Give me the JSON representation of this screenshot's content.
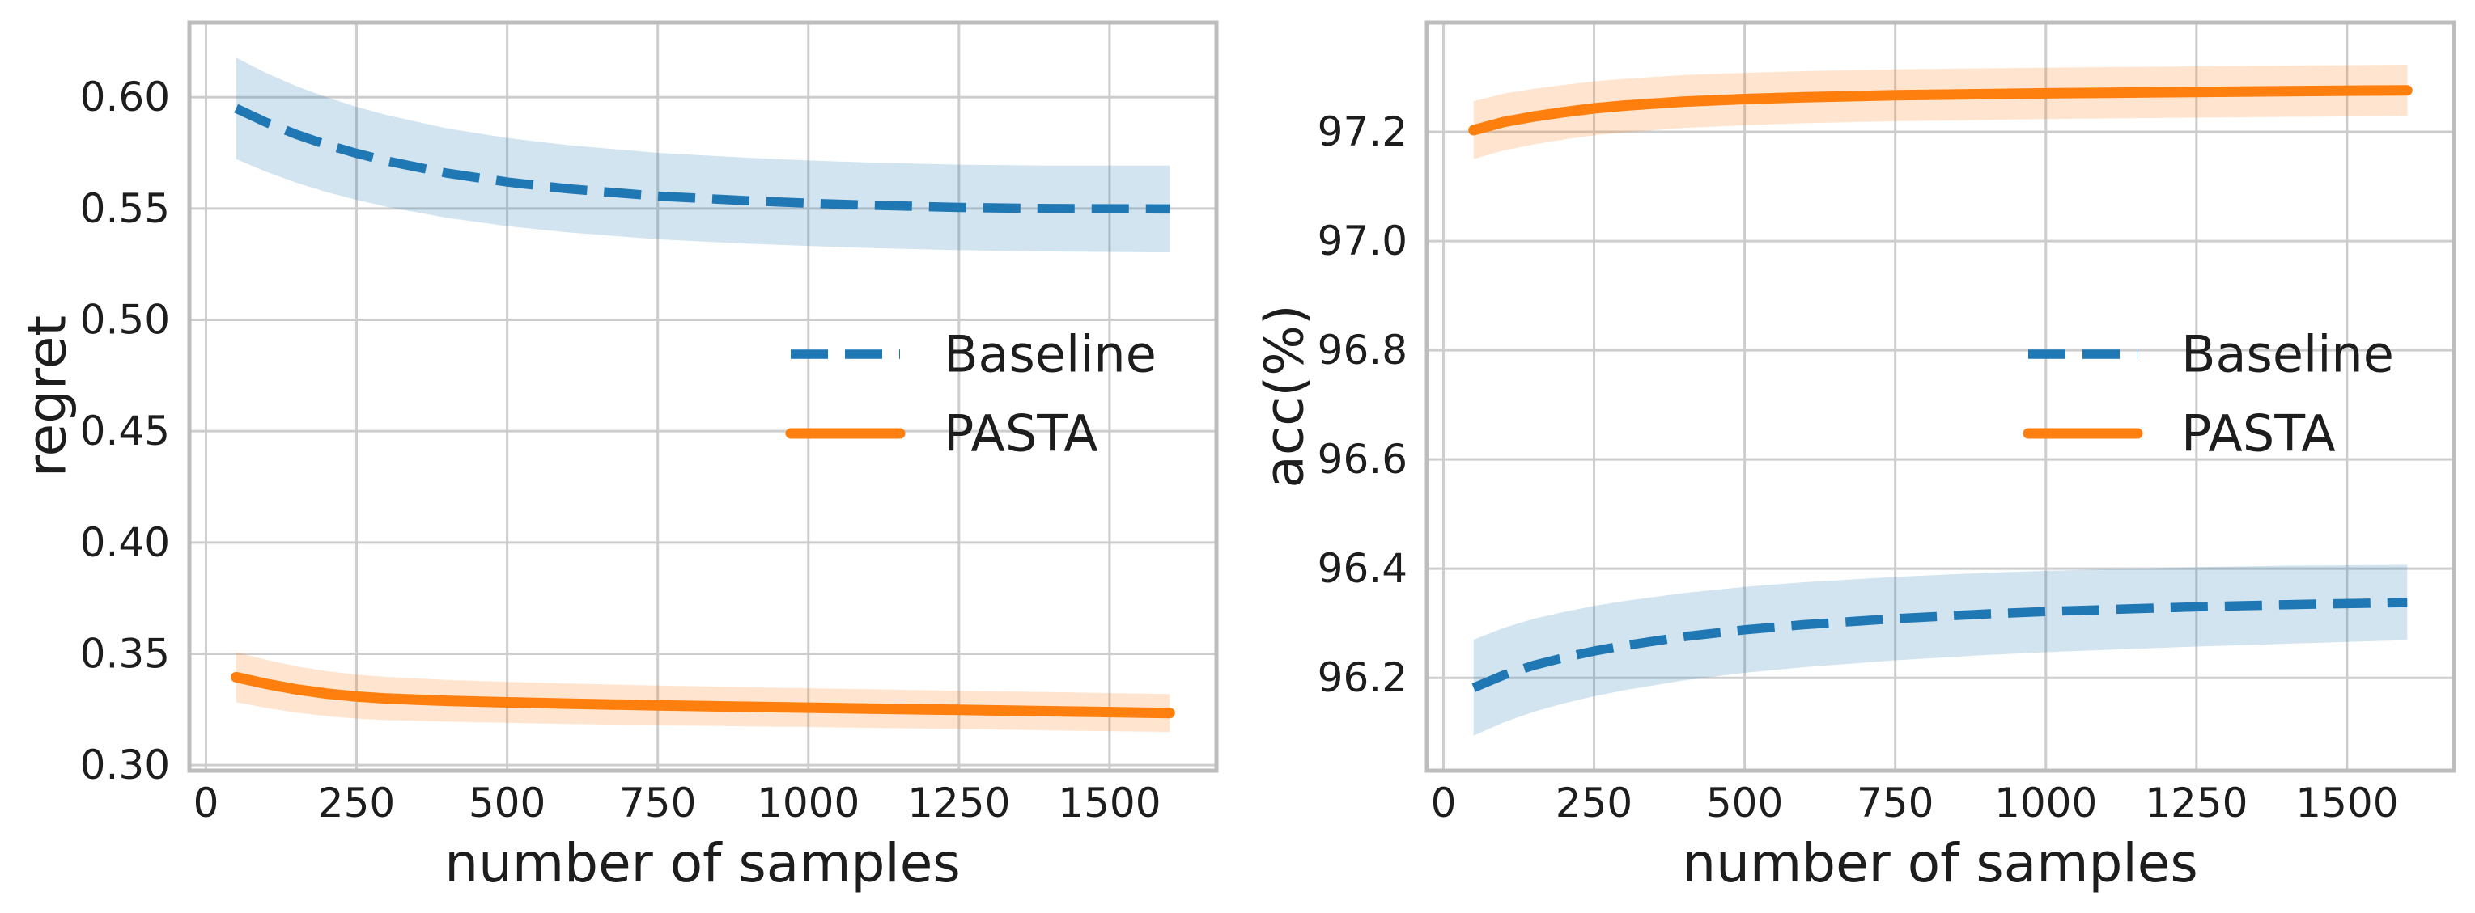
{
  "page": {
    "background": "#ffffff"
  },
  "colors": {
    "baseline": "#1f77b4",
    "pasta": "#ff7f0e",
    "grid": "#cdcdcd",
    "spine": "#bdbdbd",
    "text": "#1d1d1d"
  },
  "legend": {
    "baseline_label": "Baseline",
    "pasta_label": "PASTA"
  },
  "chart_data": [
    {
      "type": "line",
      "title": "",
      "xlabel": "number of samples",
      "ylabel": "regret",
      "xlim": [
        -27.5,
        1677.5
      ],
      "ylim": [
        0.2975,
        0.6335
      ],
      "grid": true,
      "legend_position": "center right, no frame",
      "x_ticks": [
        0,
        250,
        500,
        750,
        1000,
        1250,
        1500
      ],
      "x_tick_labels": [
        "0",
        "250",
        "500",
        "750",
        "1000",
        "1250",
        "1500"
      ],
      "y_ticks": [
        0.3,
        0.35,
        0.4,
        0.45,
        0.5,
        0.55,
        0.6
      ],
      "y_tick_labels": [
        "0.30",
        "0.35",
        "0.40",
        "0.45",
        "0.50",
        "0.55",
        "0.60"
      ],
      "series": [
        {
          "name": "Baseline",
          "style": "dashed",
          "color_key": "baseline",
          "x": [
            50,
            100,
            150,
            200,
            250,
            300,
            400,
            500,
            600,
            750,
            900,
            1000,
            1100,
            1250,
            1400,
            1600
          ],
          "y": [
            0.595,
            0.5887,
            0.5833,
            0.5787,
            0.5748,
            0.5714,
            0.5659,
            0.5619,
            0.5589,
            0.5556,
            0.5535,
            0.5524,
            0.5515,
            0.5505,
            0.55,
            0.5498
          ],
          "band": [
            0.0228,
            0.0222,
            0.0217,
            0.0213,
            0.0209,
            0.0206,
            0.0201,
            0.0198,
            0.0196,
            0.0194,
            0.0193,
            0.0192,
            0.0192,
            0.0192,
            0.0193,
            0.0195
          ]
        },
        {
          "name": "PASTA",
          "style": "solid",
          "color_key": "pasta",
          "x": [
            50,
            100,
            150,
            200,
            250,
            300,
            400,
            500,
            600,
            750,
            900,
            1000,
            1100,
            1250,
            1400,
            1600
          ],
          "y": [
            0.3395,
            0.3365,
            0.334,
            0.3321,
            0.3308,
            0.3299,
            0.3289,
            0.3282,
            0.3276,
            0.3268,
            0.3262,
            0.3258,
            0.3254,
            0.3248,
            0.3242,
            0.3234
          ],
          "band": [
            0.0112,
            0.0108,
            0.0104,
            0.0101,
            0.0099,
            0.0097,
            0.0094,
            0.0092,
            0.0091,
            0.0089,
            0.0088,
            0.0087,
            0.0087,
            0.0086,
            0.0086,
            0.0085
          ]
        }
      ]
    },
    {
      "type": "line",
      "title": "",
      "xlabel": "number of samples",
      "ylabel": "acc(%)",
      "xlim": [
        -27.5,
        1677.5
      ],
      "ylim": [
        96.03,
        97.4
      ],
      "grid": true,
      "legend_position": "center right, no frame",
      "x_ticks": [
        0,
        250,
        500,
        750,
        1000,
        1250,
        1500
      ],
      "x_tick_labels": [
        "0",
        "250",
        "500",
        "750",
        "1000",
        "1250",
        "1500"
      ],
      "y_ticks": [
        96.2,
        96.4,
        96.6,
        96.8,
        97.0,
        97.2
      ],
      "y_tick_labels": [
        "96.2",
        "96.4",
        "96.6",
        "96.8",
        "97.0",
        "97.2"
      ],
      "series": [
        {
          "name": "Baseline",
          "style": "dashed",
          "color_key": "baseline",
          "x": [
            50,
            100,
            150,
            200,
            250,
            300,
            400,
            500,
            600,
            750,
            900,
            1000,
            1100,
            1250,
            1400,
            1600
          ],
          "y": [
            96.182,
            96.205,
            96.223,
            96.237,
            96.249,
            96.259,
            96.2755,
            96.288,
            96.2975,
            96.3085,
            96.317,
            96.3215,
            96.325,
            96.33,
            96.334,
            96.338
          ],
          "band": [
            0.088,
            0.0865,
            0.085,
            0.0838,
            0.0827,
            0.0817,
            0.08,
            0.0787,
            0.0777,
            0.0763,
            0.0752,
            0.0745,
            0.0738,
            0.0727,
            0.0715,
            0.069
          ]
        },
        {
          "name": "PASTA",
          "style": "solid",
          "color_key": "pasta",
          "x": [
            50,
            100,
            150,
            200,
            250,
            300,
            400,
            500,
            600,
            750,
            900,
            1000,
            1100,
            1250,
            1400,
            1600
          ],
          "y": [
            97.203,
            97.218,
            97.228,
            97.236,
            97.243,
            97.248,
            97.2555,
            97.26,
            97.2635,
            97.267,
            97.269,
            97.2705,
            97.2715,
            97.273,
            97.2745,
            97.276
          ],
          "band": [
            0.053,
            0.052,
            0.051,
            0.05,
            0.0495,
            0.049,
            0.0485,
            0.048,
            0.0478,
            0.0475,
            0.0473,
            0.0471,
            0.047,
            0.047,
            0.047,
            0.047
          ]
        }
      ]
    }
  ]
}
